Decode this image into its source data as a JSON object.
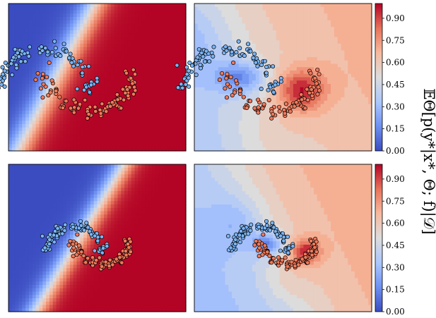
{
  "chart_data": [
    {
      "type": "heatmap",
      "panel": "row1-left",
      "description_kind": "decision-boundary",
      "colormap": [
        "#3b4cc0",
        "#6f92f3",
        "#aac7fd",
        "#dddcdc",
        "#f7b89c",
        "#e7745b",
        "#b40426"
      ],
      "vmin": 0.0,
      "vmax": 1.0,
      "boundary": {
        "slope": 2.3,
        "intercept": 0.05,
        "sharpness": 22
      },
      "moons": {
        "cx": 0.33,
        "cy": 0.52,
        "scale": 1.0
      },
      "grid": false,
      "ticks": false
    },
    {
      "type": "heatmap",
      "panel": "row1-right",
      "colormap": [
        "#3b4cc0",
        "#6f92f3",
        "#aac7fd",
        "#dddcdc",
        "#f7b89c",
        "#e7745b",
        "#b40426"
      ],
      "vmin": 0.0,
      "vmax": 1.0,
      "levels": 16,
      "moons": {
        "cx": 0.32,
        "cy": 0.52,
        "scale": 1.0
      },
      "grid": false,
      "ticks": false
    },
    {
      "type": "heatmap",
      "panel": "row2-left",
      "colormap": [
        "#3b4cc0",
        "#6f92f3",
        "#aac7fd",
        "#dddcdc",
        "#f7b89c",
        "#e7745b",
        "#b40426"
      ],
      "vmin": 0.0,
      "vmax": 1.0,
      "boundary": {
        "slope": 2.0,
        "intercept": 0.15,
        "sharpness": 26
      },
      "moons": {
        "cx": 0.45,
        "cy": 0.55,
        "scale": 0.62
      },
      "grid": false,
      "ticks": false
    },
    {
      "type": "heatmap",
      "panel": "row2-right",
      "colormap": [
        "#3b4cc0",
        "#6f92f3",
        "#aac7fd",
        "#dddcdc",
        "#f7b89c",
        "#e7745b",
        "#b40426"
      ],
      "vmin": 0.0,
      "vmax": 1.0,
      "levels": 16,
      "moons": {
        "cx": 0.45,
        "cy": 0.55,
        "scale": 0.62
      },
      "grid": false,
      "ticks": false
    }
  ],
  "colorbar": {
    "ticks": [
      "0.00",
      "0.15",
      "0.30",
      "0.45",
      "0.60",
      "0.75",
      "0.90"
    ],
    "tick_values": [
      0.0,
      0.15,
      0.3,
      0.45,
      0.6,
      0.75,
      0.9
    ],
    "range": [
      0.0,
      1.0
    ]
  },
  "ylabel": "𝔼Θ[p(y*|x*, Θ; f)|𝒟]",
  "colors": {
    "class0_point": "#7ab4f5",
    "class1_point": "#f0795a",
    "point_edge": "#000000"
  }
}
